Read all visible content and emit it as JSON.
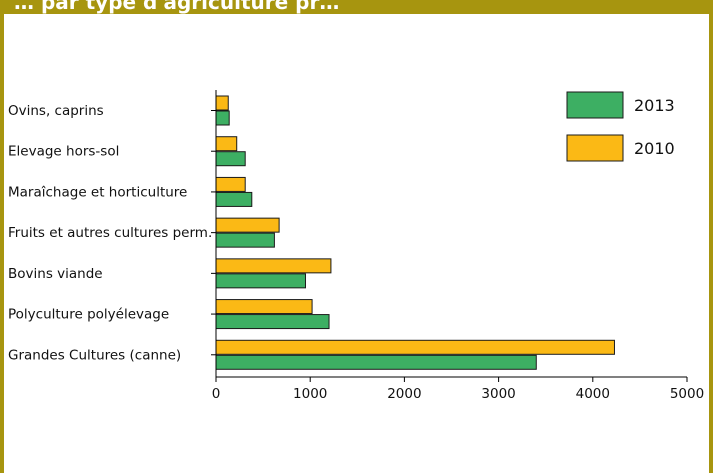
{
  "header": {
    "title": "… par type d'agriculture pr…"
  },
  "colors": {
    "frame": "#a7950f",
    "series_2013": "#3daf63",
    "series_2010": "#fbb915",
    "axis": "#000000"
  },
  "chart_data": {
    "type": "bar",
    "orientation": "horizontal",
    "categories": [
      "Ovins, caprins",
      "Elevage hors-sol",
      "Maraîchage et horticulture",
      "Fruits et autres cultures perm.",
      "Bovins viande",
      "Polyculture polyélevage",
      "Grandes Cultures (canne)"
    ],
    "series": [
      {
        "name": "2010",
        "color": "#fbb915",
        "values": [
          130,
          220,
          310,
          670,
          1220,
          1020,
          4230
        ]
      },
      {
        "name": "2013",
        "color": "#3daf63",
        "values": [
          140,
          310,
          380,
          620,
          950,
          1200,
          3400
        ]
      }
    ],
    "xlim": [
      0,
      5000
    ],
    "xticks": [
      "0",
      "1000",
      "2000",
      "3000",
      "4000",
      "5000"
    ],
    "legend": {
      "placement": "top-right",
      "entries": [
        "2013",
        "2010"
      ]
    },
    "grid": false,
    "title": "",
    "xlabel": "",
    "ylabel": ""
  }
}
